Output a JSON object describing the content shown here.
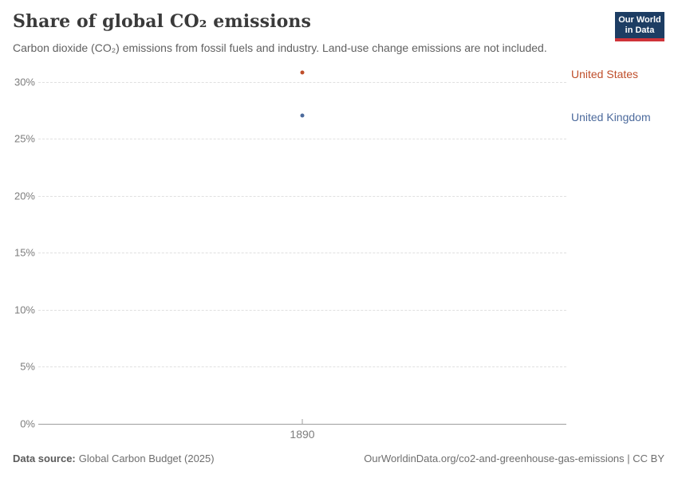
{
  "header": {
    "title": "Share of global CO₂ emissions",
    "subtitle": "Carbon dioxide (CO₂) emissions from fossil fuels and industry. Land-use change emissions are not included.",
    "logo": {
      "line1": "Our World",
      "line2": "in Data"
    }
  },
  "chart_data": {
    "type": "scatter",
    "title": "Share of global CO₂ emissions",
    "x": [
      1890
    ],
    "series": [
      {
        "name": "United States",
        "values": [
          30.8
        ],
        "color": "#bf4e2a"
      },
      {
        "name": "United Kingdom",
        "values": [
          27.0
        ],
        "color": "#4c6a9c"
      }
    ],
    "xlabel": "",
    "ylabel": "",
    "ylim": [
      0,
      30
    ],
    "yticks": [
      0,
      5,
      10,
      15,
      20,
      25,
      30
    ],
    "ytick_suffix": "%",
    "xticks": [
      1890
    ],
    "grid": "horizontal-dashed",
    "legend_position": "right-edge-labels"
  },
  "footer": {
    "source_label": "Data source:",
    "source_value": "Global Carbon Budget (2025)",
    "attribution": "OurWorldinData.org/co2-and-greenhouse-gas-emissions | CC BY"
  },
  "colors": {
    "united_states": "#bf4e2a",
    "united_kingdom": "#4c6a9c",
    "logo_bg": "#1d3d63",
    "logo_accent": "#cf3339",
    "gridline": "#e0e0e0",
    "axis": "#9e9e9e",
    "tick_text": "#7d7d7d"
  }
}
